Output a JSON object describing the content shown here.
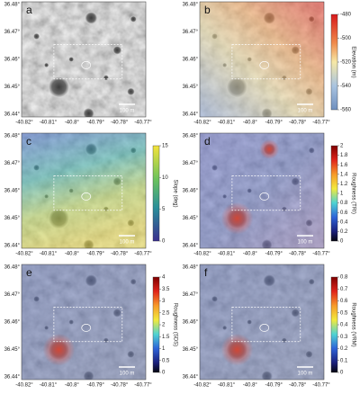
{
  "axes": {
    "lat_ticks": [
      "36.48°",
      "36.47°",
      "36.46°",
      "36.45°",
      "36.44°"
    ],
    "lon_ticks": [
      "-40.82°",
      "-40.81°",
      "-40.8°",
      "-40.79°",
      "-40.78°",
      "-40.77°"
    ]
  },
  "scale_bar": "100 m",
  "panels": [
    {
      "label": "a"
    },
    {
      "label": "b",
      "colorbar": {
        "title": "Elevation (m)",
        "ticks": [
          "-480",
          "-500",
          "-520",
          "-540",
          "-560"
        ]
      }
    },
    {
      "label": "c",
      "colorbar": {
        "title": "Slope (deg)",
        "ticks": [
          "15",
          "10",
          "5",
          "0"
        ]
      }
    },
    {
      "label": "d",
      "colorbar": {
        "title": "Roughness (TRI)",
        "ticks": [
          "2",
          "1.8",
          "1.6",
          "1.4",
          "1.2",
          "1",
          "0.8",
          "0.6",
          "0.4",
          "0.2",
          "0"
        ]
      }
    },
    {
      "label": "e",
      "colorbar": {
        "title": "Roughness (SDS)",
        "ticks": [
          "4",
          "3.5",
          "3",
          "2.5",
          "2",
          "1.5",
          "1",
          "0.5",
          "0"
        ]
      }
    },
    {
      "label": "f",
      "colorbar": {
        "title": "Roughness (VRM)",
        "ticks": [
          "0.8",
          "0.7",
          "0.6",
          "0.5",
          "0.4",
          "0.3",
          "0.2",
          "0.1",
          "0"
        ]
      }
    }
  ]
}
